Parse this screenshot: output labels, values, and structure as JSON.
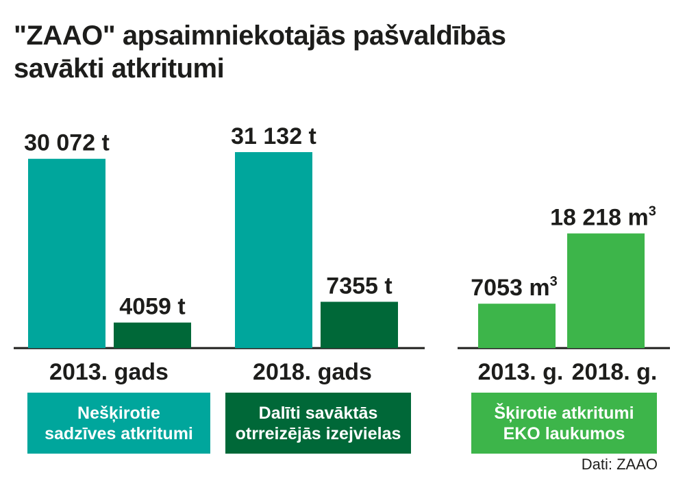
{
  "title_lines": [
    "\"ZAAO\" apsaimniekotajās pašvaldībās",
    "savākti atkritumi"
  ],
  "colors": {
    "neskirotie": "#00a69c",
    "daliti": "#006838",
    "skirotie": "#3db54a",
    "axis": "#1d1d1b"
  },
  "legend": {
    "neskirotie": [
      "Nešķirotie",
      "sadzīves atkritumi"
    ],
    "daliti": [
      "Dalīti savāktās",
      "otrreizējās izejvielas"
    ],
    "skirotie": [
      "Šķirotie atkritumi",
      "EKO laukumos"
    ]
  },
  "source": "Dati: ZAAO",
  "chart_data": [
    {
      "type": "bar",
      "categories": [
        "2013. gads",
        "2018. gads"
      ],
      "series": [
        {
          "name": "Nešķirotie sadzīves atkritumi",
          "values": [
            30072,
            31132
          ],
          "labels": [
            "30 072 t",
            "31 132 t"
          ],
          "color": "#00a69c"
        },
        {
          "name": "Dalīti savāktās otrreizējās izejvielas",
          "values": [
            4059,
            7355
          ],
          "labels": [
            "4059 t",
            "7355 t"
          ],
          "color": "#006838"
        }
      ],
      "unit": "t",
      "ylim": [
        0,
        34000
      ],
      "grid": false
    },
    {
      "type": "bar",
      "categories": [
        "2013. g.",
        "2018. g."
      ],
      "series": [
        {
          "name": "Šķirotie atkritumi EKO laukumos",
          "values": [
            7053,
            18218
          ],
          "labels": [
            "7053 m",
            "18 218 m"
          ],
          "color": "#3db54a"
        }
      ],
      "unit": "m3",
      "unit_sup": "3",
      "ylim": [
        0,
        34000
      ],
      "grid": false
    }
  ]
}
